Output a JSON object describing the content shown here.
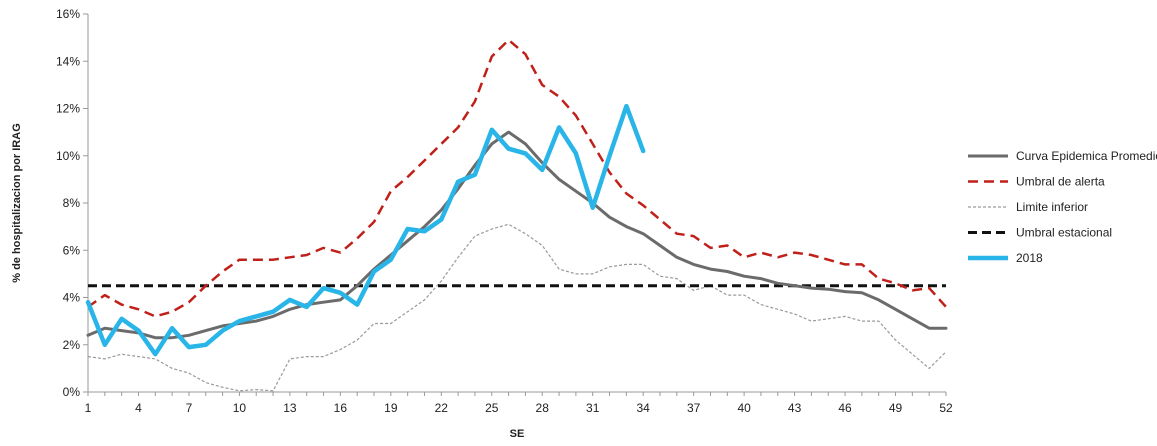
{
  "chart_data": {
    "type": "line",
    "xlabel": "SE",
    "ylabel": "% de hospitalizacion por IRAG",
    "xlim": [
      1,
      52
    ],
    "ylim": [
      0,
      16
    ],
    "x_ticks": [
      1,
      4,
      7,
      10,
      13,
      16,
      19,
      22,
      25,
      28,
      31,
      34,
      37,
      40,
      43,
      46,
      49,
      52
    ],
    "y_ticks": [
      0,
      2,
      4,
      6,
      8,
      10,
      12,
      14,
      16
    ],
    "y_tick_labels": [
      "0%",
      "2%",
      "4%",
      "6%",
      "8%",
      "10%",
      "12%",
      "14%",
      "16%"
    ],
    "grid": false,
    "legend_position": "right",
    "series": [
      {
        "name": "Curva Epidemica Promedio",
        "color": "#6b6b6b",
        "style": "solid",
        "x": [
          1,
          2,
          3,
          4,
          5,
          6,
          7,
          8,
          9,
          10,
          11,
          12,
          13,
          14,
          15,
          16,
          17,
          18,
          19,
          20,
          21,
          22,
          23,
          24,
          25,
          26,
          27,
          28,
          29,
          30,
          31,
          32,
          33,
          34,
          35,
          36,
          37,
          38,
          39,
          40,
          41,
          42,
          43,
          44,
          45,
          46,
          47,
          48,
          49,
          50,
          51,
          52
        ],
        "values": [
          2.4,
          2.7,
          2.6,
          2.5,
          2.3,
          2.3,
          2.4,
          2.6,
          2.8,
          2.9,
          3.0,
          3.2,
          3.5,
          3.7,
          3.8,
          3.9,
          4.5,
          5.2,
          5.8,
          6.4,
          7.0,
          7.7,
          8.6,
          9.6,
          10.5,
          11.0,
          10.5,
          9.7,
          9.0,
          8.5,
          8.0,
          7.4,
          7.0,
          6.7,
          6.2,
          5.7,
          5.4,
          5.2,
          5.1,
          4.9,
          4.8,
          4.6,
          4.5,
          4.4,
          4.35,
          4.25,
          4.2,
          3.9,
          3.5,
          3.1,
          2.7,
          2.7
        ]
      },
      {
        "name": "Umbral de alerta",
        "color": "#c0201a",
        "style": "dashed",
        "x": [
          1,
          2,
          3,
          4,
          5,
          6,
          7,
          8,
          9,
          10,
          11,
          12,
          13,
          14,
          15,
          16,
          17,
          18,
          19,
          20,
          21,
          22,
          23,
          24,
          25,
          26,
          27,
          28,
          29,
          30,
          31,
          32,
          33,
          34,
          35,
          36,
          37,
          38,
          39,
          40,
          41,
          42,
          43,
          44,
          45,
          46,
          47,
          48,
          49,
          50,
          51,
          52
        ],
        "values": [
          3.6,
          4.1,
          3.7,
          3.5,
          3.2,
          3.4,
          3.8,
          4.5,
          5.1,
          5.6,
          5.6,
          5.6,
          5.7,
          5.8,
          6.1,
          5.9,
          6.5,
          7.2,
          8.5,
          9.1,
          9.8,
          10.5,
          11.2,
          12.3,
          14.2,
          14.9,
          14.3,
          13.0,
          12.5,
          11.7,
          10.5,
          9.3,
          8.4,
          7.9,
          7.3,
          6.7,
          6.6,
          6.1,
          6.2,
          5.7,
          5.9,
          5.7,
          5.9,
          5.8,
          5.6,
          5.4,
          5.4,
          4.8,
          4.6,
          4.3,
          4.4,
          3.6
        ]
      },
      {
        "name": "Limite inferior",
        "color": "#9a9a9a",
        "style": "dotted",
        "x": [
          1,
          2,
          3,
          4,
          5,
          6,
          7,
          8,
          9,
          10,
          11,
          12,
          13,
          14,
          15,
          16,
          17,
          18,
          19,
          20,
          21,
          22,
          23,
          24,
          25,
          26,
          27,
          28,
          29,
          30,
          31,
          32,
          33,
          34,
          35,
          36,
          37,
          38,
          39,
          40,
          41,
          42,
          43,
          44,
          45,
          46,
          47,
          48,
          49,
          50,
          51,
          52
        ],
        "values": [
          1.5,
          1.4,
          1.6,
          1.5,
          1.4,
          1.0,
          0.8,
          0.4,
          0.2,
          0.05,
          0.1,
          0.05,
          1.4,
          1.5,
          1.5,
          1.8,
          2.2,
          2.9,
          2.9,
          3.4,
          3.9,
          4.7,
          5.7,
          6.6,
          6.9,
          7.1,
          6.7,
          6.2,
          5.2,
          5.0,
          5.0,
          5.3,
          5.4,
          5.4,
          4.9,
          4.8,
          4.3,
          4.5,
          4.1,
          4.1,
          3.7,
          3.5,
          3.3,
          3.0,
          3.1,
          3.2,
          3.0,
          3.0,
          2.2,
          1.6,
          1.0,
          1.7
        ]
      },
      {
        "name": "Umbral estacional",
        "color": "#111111",
        "style": "dashed",
        "x": [
          1,
          52
        ],
        "values": [
          4.5,
          4.5
        ]
      },
      {
        "name": "2018",
        "color": "#29b5e8",
        "style": "solid",
        "x": [
          1,
          2,
          3,
          4,
          5,
          6,
          7,
          8,
          9,
          10,
          11,
          12,
          13,
          14,
          15,
          16,
          17,
          18,
          19,
          20,
          21,
          22,
          23,
          24,
          25,
          26,
          27,
          28,
          29,
          30,
          31,
          32,
          33,
          34
        ],
        "values": [
          3.8,
          2.0,
          3.1,
          2.6,
          1.6,
          2.7,
          1.9,
          2.0,
          2.6,
          3.0,
          3.2,
          3.4,
          3.9,
          3.6,
          4.4,
          4.2,
          3.7,
          5.1,
          5.6,
          6.9,
          6.8,
          7.3,
          8.9,
          9.2,
          11.1,
          10.3,
          10.1,
          9.4,
          11.2,
          10.1,
          7.8,
          10.0,
          12.1,
          10.2
        ]
      }
    ]
  }
}
